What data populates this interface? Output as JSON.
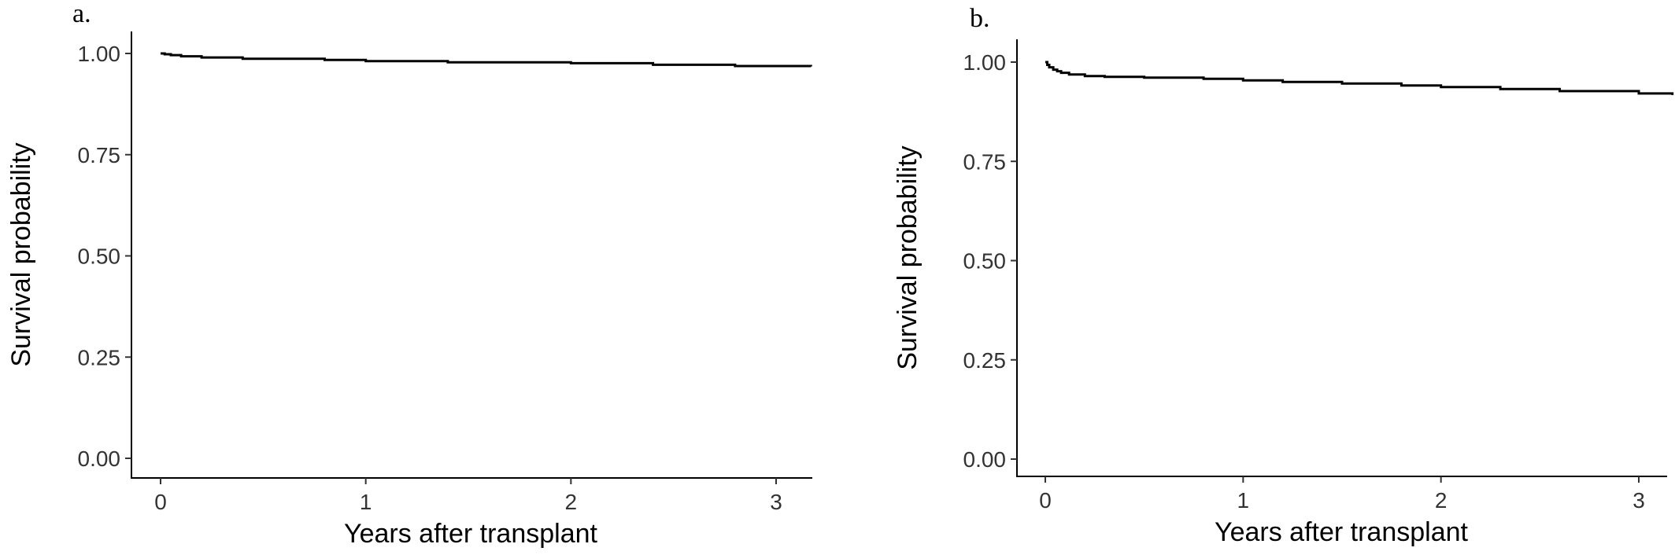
{
  "chart_data": [
    {
      "type": "line",
      "panel_label": "a.",
      "xlabel": "Years after transplant",
      "ylabel": "Survival probability",
      "xlim": [
        -0.15,
        3.17
      ],
      "ylim": [
        -0.05,
        1.05
      ],
      "xticks": [
        0,
        1,
        2,
        3
      ],
      "xtick_labels": [
        "0",
        "1",
        "2",
        "3"
      ],
      "yticks": [
        0.0,
        0.25,
        0.5,
        0.75,
        1.0
      ],
      "ytick_labels": [
        "0.00",
        "0.25",
        "0.50",
        "0.75",
        "1.00"
      ],
      "grid": false,
      "series": [
        {
          "step": true,
          "x": [
            0,
            0.02,
            0.05,
            0.1,
            0.2,
            0.4,
            0.8,
            1.0,
            1.4,
            2.0,
            2.4,
            2.8,
            3.17
          ],
          "y": [
            1.0,
            0.998,
            0.996,
            0.993,
            0.99,
            0.987,
            0.984,
            0.981,
            0.978,
            0.976,
            0.972,
            0.969,
            0.968
          ]
        }
      ]
    },
    {
      "type": "line",
      "panel_label": "b.",
      "xlabel": "Years after transplant",
      "ylabel": "Survival probability",
      "xlim": [
        -0.15,
        3.17
      ],
      "ylim": [
        -0.05,
        1.05
      ],
      "xticks": [
        0,
        1,
        2,
        3
      ],
      "xtick_labels": [
        "0",
        "1",
        "2",
        "3"
      ],
      "yticks": [
        0.0,
        0.25,
        0.5,
        0.75,
        1.0
      ],
      "ytick_labels": [
        "0.00",
        "0.25",
        "0.50",
        "0.75",
        "1.00"
      ],
      "grid": false,
      "series": [
        {
          "step": true,
          "x": [
            0,
            0.01,
            0.02,
            0.04,
            0.06,
            0.08,
            0.12,
            0.2,
            0.3,
            0.5,
            0.8,
            1.0,
            1.2,
            1.5,
            1.8,
            2.0,
            2.3,
            2.6,
            3.0,
            3.17
          ],
          "y": [
            1.0,
            0.993,
            0.987,
            0.981,
            0.977,
            0.973,
            0.969,
            0.965,
            0.963,
            0.961,
            0.958,
            0.954,
            0.95,
            0.946,
            0.941,
            0.937,
            0.932,
            0.927,
            0.921,
            0.917
          ]
        }
      ]
    }
  ]
}
